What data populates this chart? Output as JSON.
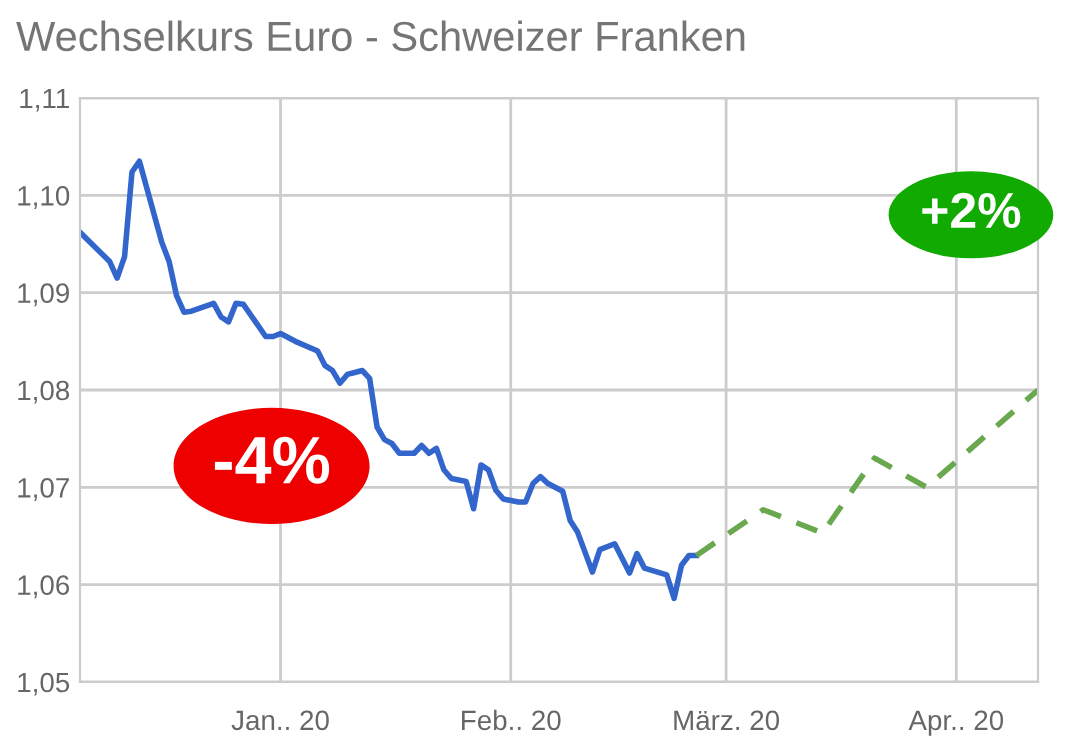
{
  "chart_data": {
    "type": "line",
    "title": "Wechselkurs Euro - Schweizer Franken",
    "series": [
      {
        "color": "#3366cc",
        "line_style": "solid",
        "x": [
          "2019-12-05",
          "2019-12-09",
          "2019-12-10",
          "2019-12-11",
          "2019-12-12",
          "2019-12-13",
          "2019-12-16",
          "2019-12-17",
          "2019-12-18",
          "2019-12-19",
          "2019-12-20",
          "2019-12-23",
          "2019-12-24",
          "2019-12-25",
          "2019-12-26",
          "2019-12-27",
          "2019-12-30",
          "2019-12-31",
          "2020-01-01",
          "2020-01-03",
          "2020-01-06",
          "2020-01-07",
          "2020-01-08",
          "2020-01-09",
          "2020-01-10",
          "2020-01-11",
          "2020-01-12",
          "2020-01-13",
          "2020-01-14",
          "2020-01-15",
          "2020-01-16",
          "2020-01-17",
          "2020-01-19",
          "2020-01-20",
          "2020-01-21",
          "2020-01-22",
          "2020-01-23",
          "2020-01-24",
          "2020-01-26",
          "2020-01-27",
          "2020-01-28",
          "2020-01-29",
          "2020-01-30",
          "2020-01-31",
          "2020-02-02",
          "2020-02-03",
          "2020-02-04",
          "2020-02-05",
          "2020-02-06",
          "2020-02-08",
          "2020-02-09",
          "2020-02-10",
          "2020-02-12",
          "2020-02-13",
          "2020-02-15",
          "2020-02-17",
          "2020-02-18",
          "2020-02-19",
          "2020-02-22",
          "2020-02-23",
          "2020-02-24",
          "2020-02-25",
          "2020-02-26"
        ],
        "values": [
          1.0962,
          1.0932,
          1.0915,
          1.0937,
          1.1024,
          1.1035,
          1.0952,
          1.0932,
          1.0897,
          1.088,
          1.0881,
          1.0889,
          1.0875,
          1.087,
          1.0889,
          1.0888,
          1.0855,
          1.0855,
          1.0858,
          1.085,
          1.084,
          1.0825,
          1.082,
          1.0807,
          1.0816,
          1.0818,
          1.082,
          1.0812,
          1.0762,
          1.0749,
          1.0745,
          1.0735,
          1.0735,
          1.0743,
          1.0735,
          1.074,
          1.0718,
          1.0709,
          1.0706,
          1.0678,
          1.0723,
          1.0718,
          1.0697,
          1.0688,
          1.0685,
          1.0685,
          1.0704,
          1.0711,
          1.0704,
          1.0696,
          1.0666,
          1.0654,
          1.0613,
          1.0636,
          1.0642,
          1.0612,
          1.0632,
          1.0617,
          1.061,
          1.0586,
          1.062,
          1.063,
          1.063
        ]
      },
      {
        "color": "#6aa84f",
        "line_style": "dashed",
        "x": [
          "2020-02-26",
          "2020-03-06",
          "2020-03-14",
          "2020-03-21",
          "2020-03-28",
          "2020-04-12"
        ],
        "values": [
          1.063,
          1.0677,
          1.0653,
          1.073,
          1.07,
          1.08
        ]
      }
    ],
    "annotations": [
      "-4%",
      "+2%"
    ],
    "xlim": [
      "2019-12-05",
      "2020-04-12"
    ],
    "xticks": [
      {
        "value": "2020-01-01",
        "label": "Jan.. 20"
      },
      {
        "value": "2020-02-01",
        "label": "Feb.. 20"
      },
      {
        "value": "2020-03-01",
        "label": "März. 20"
      },
      {
        "value": "2020-04-01",
        "label": "Apr.. 20"
      }
    ],
    "ylim": [
      1.05,
      1.11
    ],
    "yticks": [
      {
        "value": 1.05,
        "label": "1,05"
      },
      {
        "value": 1.06,
        "label": "1,06"
      },
      {
        "value": 1.07,
        "label": "1,07"
      },
      {
        "value": 1.08,
        "label": "1,08"
      },
      {
        "value": 1.09,
        "label": "1,09"
      },
      {
        "value": 1.1,
        "label": "1,10"
      },
      {
        "value": 1.11,
        "label": "1,11"
      }
    ],
    "grid": true,
    "legend": false,
    "marker": "none"
  }
}
